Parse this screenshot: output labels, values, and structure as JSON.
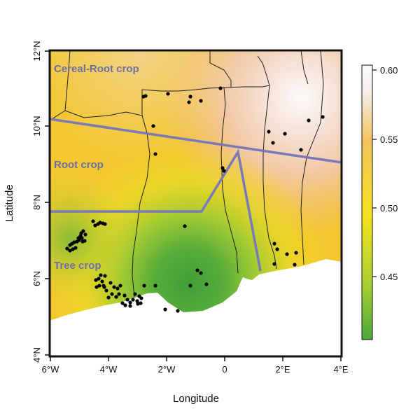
{
  "map": {
    "x_axis": {
      "label": "Longitude",
      "ticks": [
        "6°W",
        "4°W",
        "2°W",
        "0",
        "2°E",
        "4°E"
      ],
      "range": [
        -6,
        4
      ]
    },
    "y_axis": {
      "label": "Latitude",
      "ticks": [
        "4°N",
        "6°N",
        "8°N",
        "10°N",
        "12°N"
      ],
      "range": [
        4,
        12
      ]
    },
    "zones": [
      "Cereal-Root crop",
      "Root crop",
      "Tree crop"
    ],
    "colorbar": {
      "ticks": [
        "0.45",
        "0.50",
        "0.55",
        "0.60"
      ],
      "range": [
        0.4,
        0.6
      ],
      "colors": [
        "#4aa83a",
        "#a8d033",
        "#f5e21e",
        "#f2c35c",
        "#f5ede8",
        "#fafafa"
      ]
    },
    "colors": {
      "zone_boundary": "#7a78b8",
      "country_border": "#222222",
      "site_marker": "#000000",
      "sea": "#ffffff"
    },
    "site_count": 86
  }
}
